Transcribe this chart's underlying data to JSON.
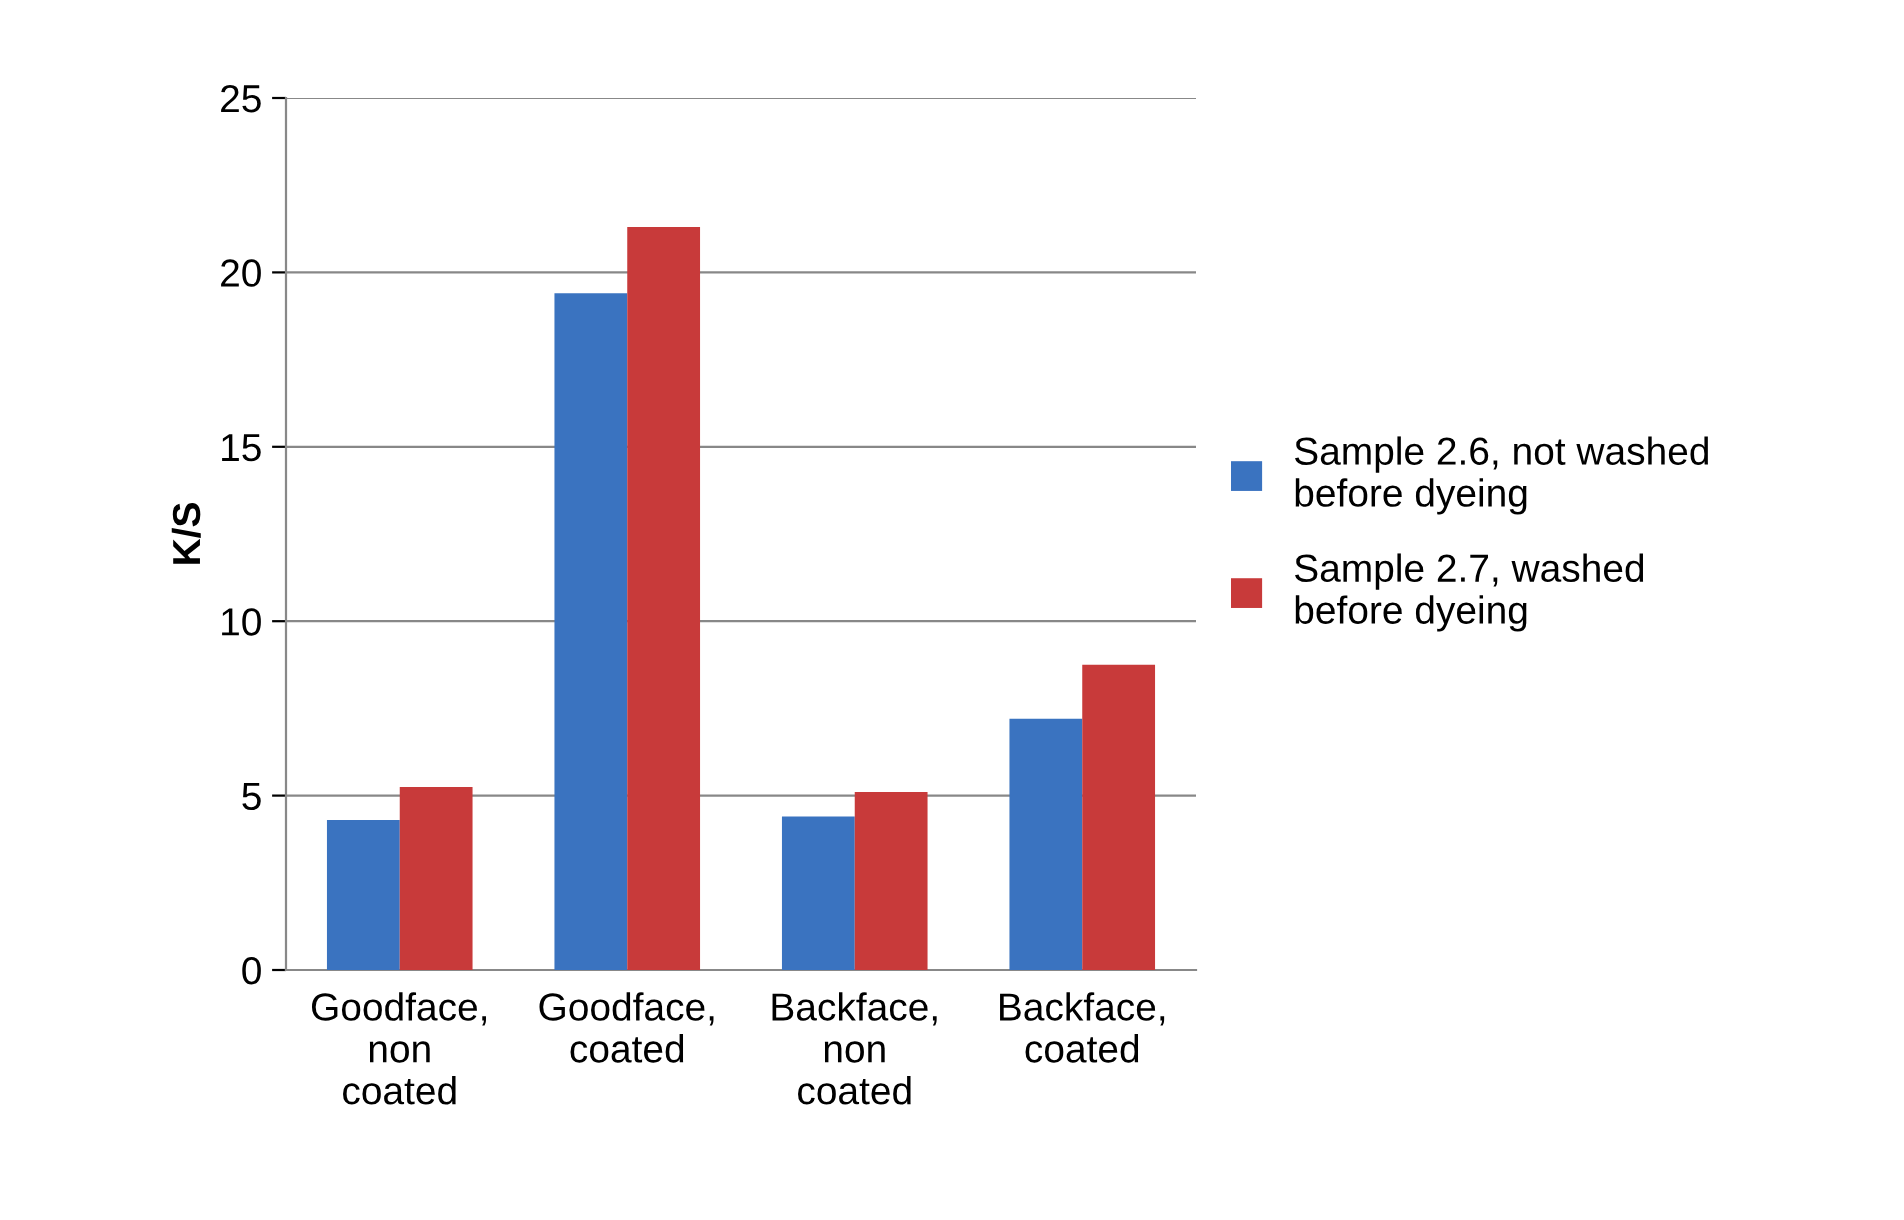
{
  "chart_data": {
    "type": "bar",
    "ylabel": "K/S",
    "categories": [
      "Goodface,\nnon\ncoated",
      "Goodface,\ncoated",
      "Backface,\nnon\ncoated",
      "Backface,\ncoated"
    ],
    "series": [
      {
        "name": "Sample 2.6, not washed\nbefore dyeing",
        "color": "#3a73c0",
        "values": [
          4.3,
          19.4,
          4.4,
          7.2
        ]
      },
      {
        "name": "Sample 2.7, washed\nbefore dyeing",
        "color": "#c83a3a",
        "values": [
          5.25,
          21.3,
          5.1,
          8.75
        ]
      }
    ],
    "ylim": [
      0,
      25
    ],
    "yticks": [
      0,
      5,
      10,
      15,
      20,
      25
    ],
    "grid": "y",
    "legend": "right"
  }
}
